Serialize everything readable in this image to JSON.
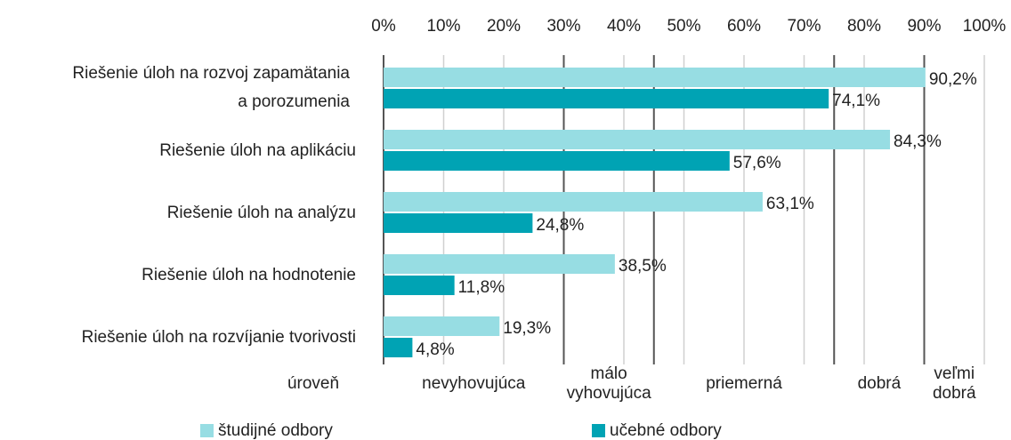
{
  "chart_data": {
    "type": "hbar",
    "categories": [
      "Riešenie úloh na rozvoj zapamätania a porozumenia",
      "Riešenie úloh na aplikáciu",
      "Riešenie úloh na analýzu",
      "Riešenie úloh na hodnotenie",
      "Riešenie úloh na rozvíjanie tvorivosti"
    ],
    "series": [
      {
        "name": "študijné odbory",
        "color": "#97dde3",
        "values": [
          90.2,
          84.3,
          63.1,
          38.5,
          19.3
        ],
        "value_labels": [
          "90,2%",
          "84,3%",
          "63,1%",
          "38,5%",
          "19,3%"
        ]
      },
      {
        "name": "učebné odbory",
        "color": "#00a3b4",
        "values": [
          74.1,
          57.6,
          24.8,
          11.8,
          4.8
        ],
        "value_labels": [
          "74,1%",
          "57,6%",
          "24,8%",
          "11,8%",
          "4,8%"
        ]
      }
    ],
    "xlim": [
      0,
      100
    ],
    "xticks": [
      {
        "value": 0,
        "label": "0%"
      },
      {
        "value": 10,
        "label": "10%"
      },
      {
        "value": 20,
        "label": "20%"
      },
      {
        "value": 30,
        "label": "30%"
      },
      {
        "value": 40,
        "label": "40%"
      },
      {
        "value": 50,
        "label": "50%"
      },
      {
        "value": 60,
        "label": "60%"
      },
      {
        "value": 70,
        "label": "70%"
      },
      {
        "value": 80,
        "label": "80%"
      },
      {
        "value": 90,
        "label": "90%"
      },
      {
        "value": 100,
        "label": "100%"
      }
    ],
    "grid": true,
    "level_title": "úroveň",
    "levels": [
      {
        "label": [
          "nevyhovujúca"
        ],
        "from": 0,
        "to": 30
      },
      {
        "label": [
          "málo",
          "vyhovujúca"
        ],
        "from": 30,
        "to": 45
      },
      {
        "label": [
          "priemerná"
        ],
        "from": 45,
        "to": 75
      },
      {
        "label": [
          "dobrá"
        ],
        "from": 75,
        "to": 90
      },
      {
        "label": [
          "veľmi",
          "dobrá"
        ],
        "from": 90,
        "to": 100
      }
    ],
    "legend": "bottom"
  }
}
